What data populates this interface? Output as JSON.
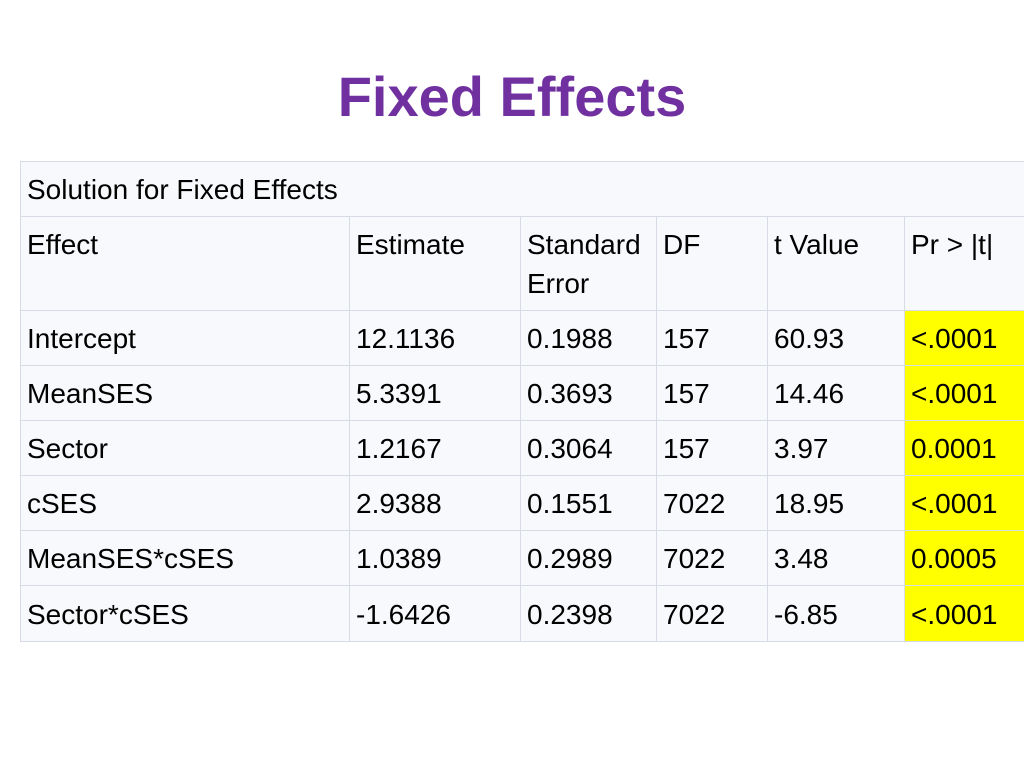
{
  "slide": {
    "title": "Fixed Effects"
  },
  "table": {
    "caption": "Solution for Fixed Effects",
    "headers": [
      "Effect",
      "Estimate",
      "Standard Error",
      "DF",
      "t Value",
      "Pr > |t|"
    ],
    "rows": [
      [
        "Intercept",
        "12.1136",
        "0.1988",
        "157",
        "60.93",
        "<.0001"
      ],
      [
        "MeanSES",
        "5.3391",
        "0.3693",
        "157",
        "14.46",
        "<.0001"
      ],
      [
        "Sector",
        "1.2167",
        "0.3064",
        "157",
        "3.97",
        "0.0001"
      ],
      [
        "cSES",
        "2.9388",
        "0.1551",
        "7022",
        "18.95",
        "<.0001"
      ],
      [
        "MeanSES*cSES",
        "1.0389",
        "0.2989",
        "7022",
        "3.48",
        "0.0005"
      ],
      [
        "Sector*cSES",
        "-1.6426",
        "0.2398",
        "7022",
        "-6.85",
        "<.0001"
      ]
    ],
    "highlight_color": "#ffff00",
    "title_color": "#7030a0"
  }
}
